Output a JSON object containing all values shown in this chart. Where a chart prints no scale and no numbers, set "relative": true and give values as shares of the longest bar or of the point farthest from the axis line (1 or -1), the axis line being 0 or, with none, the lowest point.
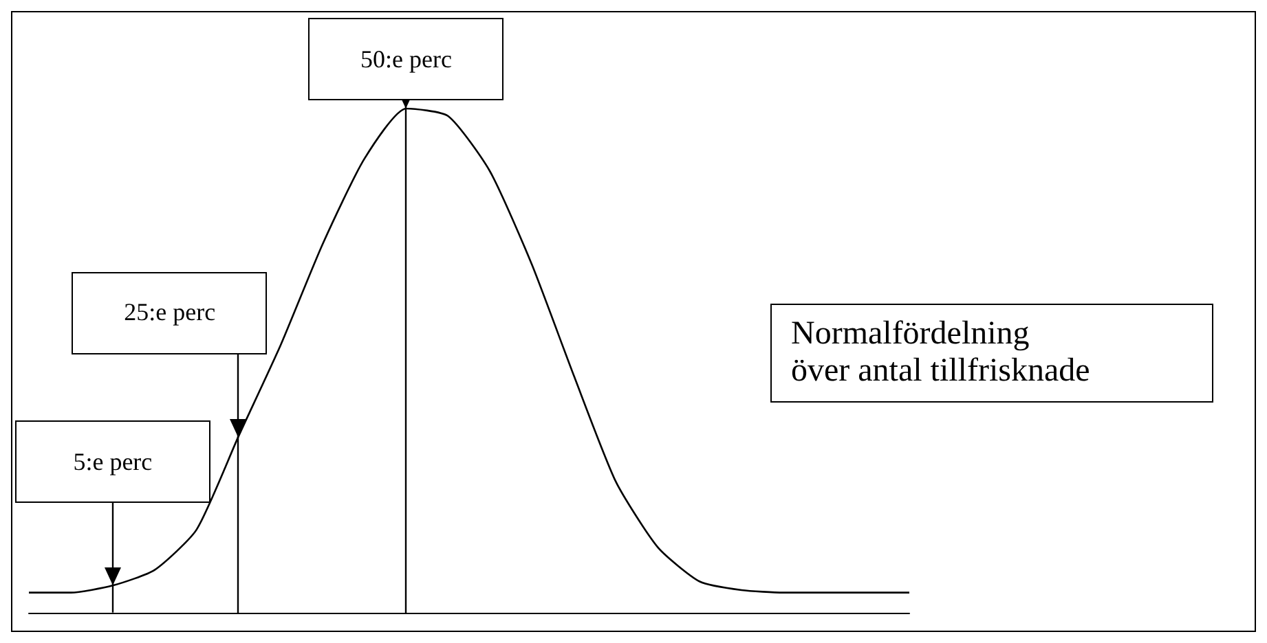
{
  "chart_data": {
    "type": "line",
    "relative": true,
    "color": "#000000",
    "marker": "none",
    "categories": [
      null,
      null,
      null,
      null,
      null,
      null,
      null,
      null,
      null,
      null,
      null,
      null,
      null,
      null,
      null,
      null,
      null,
      null,
      null,
      null,
      null,
      null
    ],
    "values": [
      0.04,
      0.04,
      0.054,
      0.085,
      0.165,
      0.35,
      0.53,
      0.73,
      0.9,
      1,
      0.985,
      0.875,
      0.69,
      0.47,
      0.26,
      0.13,
      0.062,
      0.045,
      0.04,
      0.04,
      0.04,
      0.04
    ],
    "annotations": [
      "5:e perc",
      "25:e perc",
      "50:e perc",
      "Normalfördelning\növer antal tillfrisknade"
    ]
  }
}
